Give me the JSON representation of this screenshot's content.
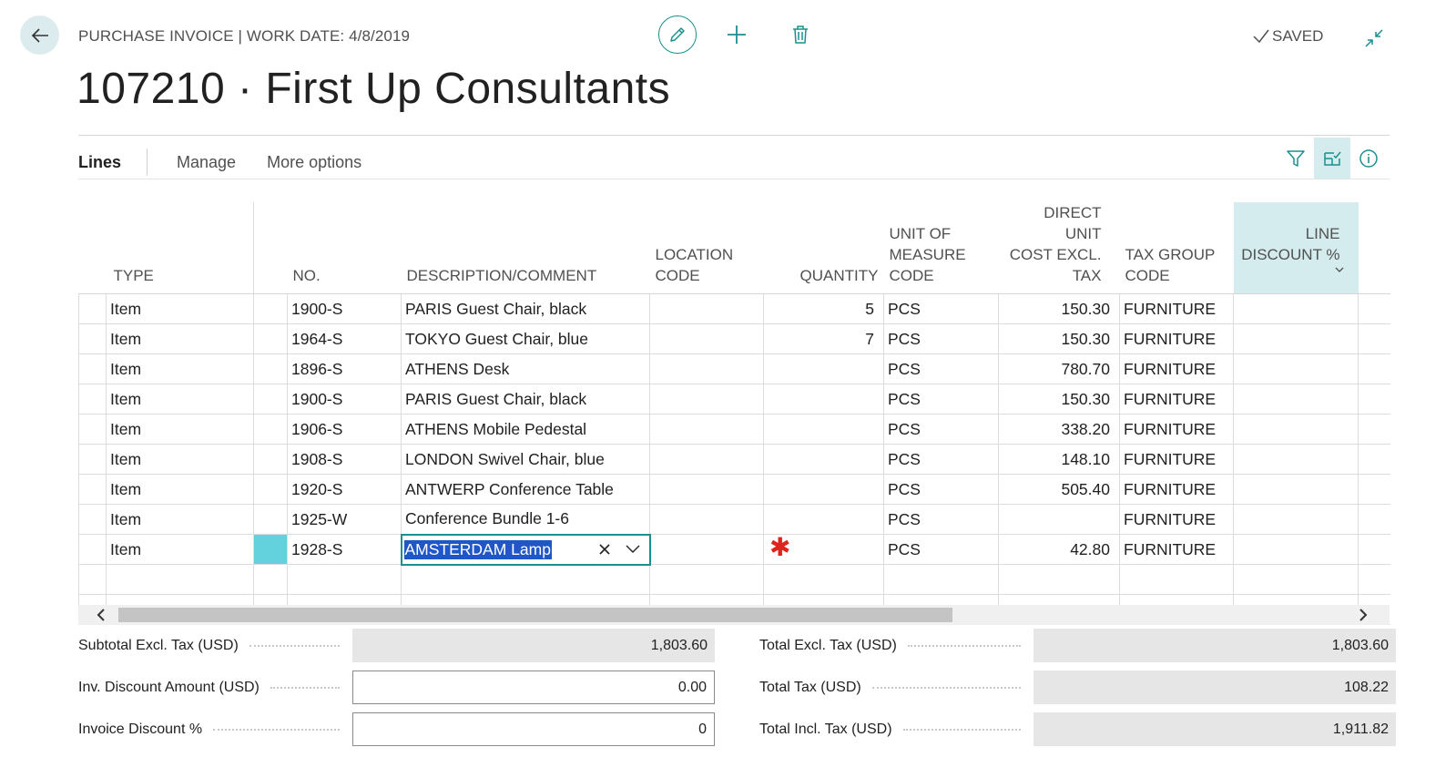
{
  "header": {
    "breadcrumb": "PURCHASE INVOICE | WORK DATE: 4/8/2019",
    "title": "107210 · First Up Consultants",
    "status": "SAVED"
  },
  "tabs": {
    "lines": "Lines",
    "manage": "Manage",
    "more": "More options"
  },
  "columns": {
    "type": "TYPE",
    "no": "NO.",
    "description": "DESCRIPTION/COMMENT",
    "location_1": "LOCATION",
    "location_2": "CODE",
    "quantity": "QUANTITY",
    "uom_1": "UNIT OF",
    "uom_2": "MEASURE",
    "uom_3": "CODE",
    "cost_1": "DIRECT UNIT",
    "cost_2": "COST EXCL.",
    "cost_3": "TAX",
    "taxgroup_1": "TAX GROUP",
    "taxgroup_2": "CODE",
    "disc_1": "LINE",
    "disc_2": "DISCOUNT %"
  },
  "rows": [
    {
      "type": "Item",
      "no": "1900-S",
      "description": "PARIS Guest Chair, black",
      "location": "",
      "quantity": "5",
      "uom": "PCS",
      "cost": "150.30",
      "taxgroup": "FURNITURE",
      "discount": ""
    },
    {
      "type": "Item",
      "no": "1964-S",
      "description": "TOKYO Guest Chair, blue",
      "location": "",
      "quantity": "7",
      "uom": "PCS",
      "cost": "150.30",
      "taxgroup": "FURNITURE",
      "discount": ""
    },
    {
      "type": "Item",
      "no": "1896-S",
      "description": "ATHENS Desk",
      "location": "",
      "quantity": "",
      "uom": "PCS",
      "cost": "780.70",
      "taxgroup": "FURNITURE",
      "discount": ""
    },
    {
      "type": "Item",
      "no": "1900-S",
      "description": "PARIS Guest Chair, black",
      "location": "",
      "quantity": "",
      "uom": "PCS",
      "cost": "150.30",
      "taxgroup": "FURNITURE",
      "discount": ""
    },
    {
      "type": "Item",
      "no": "1906-S",
      "description": "ATHENS Mobile Pedestal",
      "location": "",
      "quantity": "",
      "uom": "PCS",
      "cost": "338.20",
      "taxgroup": "FURNITURE",
      "discount": ""
    },
    {
      "type": "Item",
      "no": "1908-S",
      "description": "LONDON Swivel Chair, blue",
      "location": "",
      "quantity": "",
      "uom": "PCS",
      "cost": "148.10",
      "taxgroup": "FURNITURE",
      "discount": ""
    },
    {
      "type": "Item",
      "no": "1920-S",
      "description": "ANTWERP Conference Table",
      "location": "",
      "quantity": "",
      "uom": "PCS",
      "cost": "505.40",
      "taxgroup": "FURNITURE",
      "discount": ""
    },
    {
      "type": "Item",
      "no": "1925-W",
      "description": "Conference Bundle 1-6",
      "location": "",
      "quantity": "",
      "uom": "PCS",
      "cost": "",
      "taxgroup": "FURNITURE",
      "discount": ""
    },
    {
      "type": "Item",
      "no": "1928-S",
      "description": "AMSTERDAM Lamp",
      "location": "",
      "quantity": "",
      "uom": "PCS",
      "cost": "42.80",
      "taxgroup": "FURNITURE",
      "discount": ""
    }
  ],
  "editing": {
    "required_marker": "✱"
  },
  "totals": {
    "subtotal_label": "Subtotal Excl. Tax (USD)",
    "subtotal_value": "1,803.60",
    "inv_disc_amount_label": "Inv. Discount Amount (USD)",
    "inv_disc_amount_value": "0.00",
    "inv_disc_pct_label": "Invoice Discount %",
    "inv_disc_pct_value": "0",
    "total_excl_label": "Total Excl. Tax (USD)",
    "total_excl_value": "1,803.60",
    "total_tax_label": "Total Tax (USD)",
    "total_tax_value": "108.22",
    "total_incl_label": "Total Incl. Tax (USD)",
    "total_incl_value": "1,911.82"
  },
  "colors": {
    "accent": "#1b8f8f",
    "selected_column": "#d4ecee",
    "row_marker": "#64d2dc",
    "text_selection": "#1f57c9",
    "required": "#e0221e"
  },
  "icons": {
    "back": "back-arrow-icon",
    "edit": "pencil-icon",
    "new": "plus-icon",
    "delete": "trash-icon",
    "saved": "checkmark-icon",
    "collapse": "collapse-icon",
    "filter": "filter-icon",
    "personalize": "personalize-icon",
    "info": "info-icon"
  }
}
